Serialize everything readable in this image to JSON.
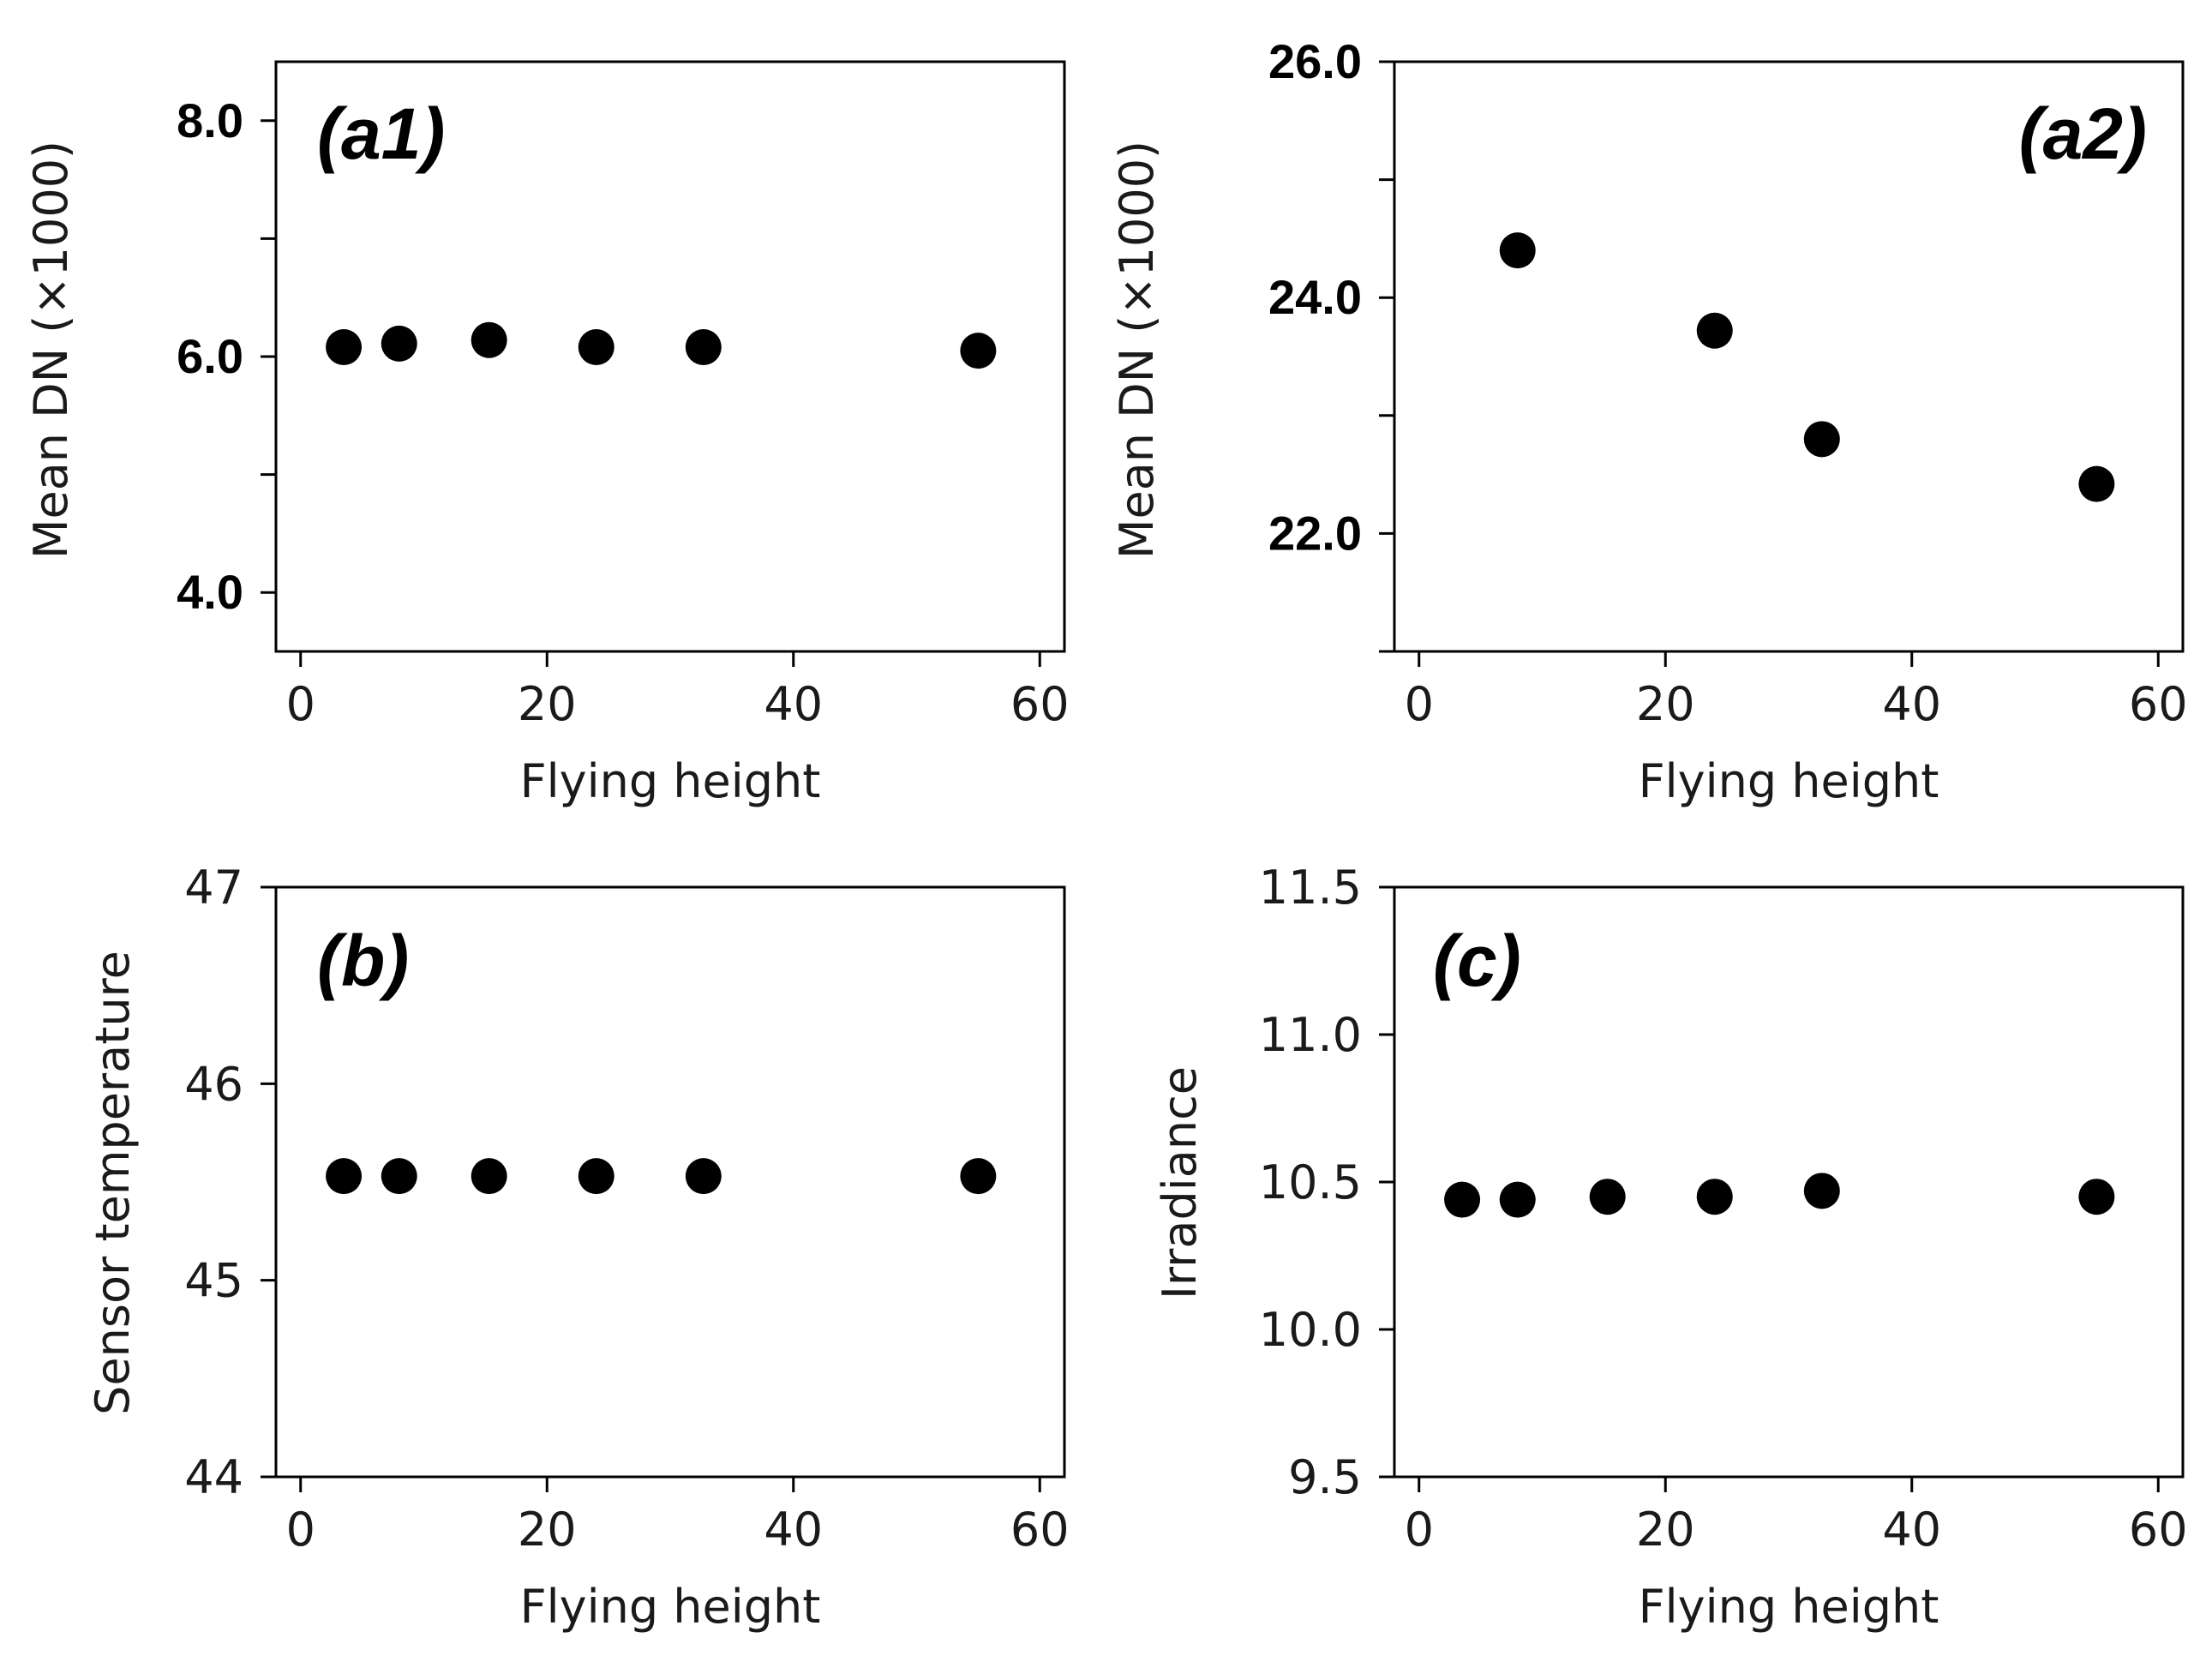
{
  "chart_data": [
    {
      "id": "a1",
      "type": "scatter",
      "panel_label": "(a1)",
      "xlabel": "Flying height",
      "ylabel": "Mean DN (×1000)",
      "xlim": [
        -2,
        62
      ],
      "ylim": [
        3.5,
        8.5
      ],
      "xticks": [
        "0",
        "20",
        "40",
        "60"
      ],
      "yticks": [
        "4.0",
        "6.0",
        "8.0"
      ],
      "minor_yticks": [
        5,
        7
      ],
      "x": [
        3.5,
        8,
        15.3,
        24,
        32.7,
        55
      ],
      "y": [
        6.08,
        6.11,
        6.14,
        6.08,
        6.08,
        6.05
      ]
    },
    {
      "id": "a2",
      "type": "scatter",
      "panel_label": "(a2)",
      "xlabel": "Flying height",
      "ylabel": "Mean DN (×1000)",
      "xlim": [
        -2,
        62
      ],
      "ylim": [
        21.0,
        26.0
      ],
      "xticks": [
        "0",
        "20",
        "40",
        "60"
      ],
      "yticks": [
        "22.0",
        "24.0",
        "26.0"
      ],
      "minor_yticks": [
        21,
        23,
        25
      ],
      "x": [
        8,
        24,
        32.7,
        55
      ],
      "y": [
        24.4,
        23.72,
        22.8,
        22.42
      ]
    },
    {
      "id": "b",
      "type": "scatter",
      "panel_label": "(b)",
      "xlabel": "Flying height",
      "ylabel": "Sensor temperature",
      "xlim": [
        -2,
        62
      ],
      "ylim": [
        44,
        47
      ],
      "xticks": [
        "0",
        "20",
        "40",
        "60"
      ],
      "yticks": [
        "44",
        "45",
        "46",
        "47"
      ],
      "x": [
        3.5,
        8,
        15.3,
        24,
        32.7,
        55
      ],
      "y": [
        45.53,
        45.53,
        45.53,
        45.53,
        45.53,
        45.53
      ]
    },
    {
      "id": "c",
      "type": "scatter",
      "panel_label": "(c)",
      "xlabel": "Flying height",
      "ylabel": "Irradiance",
      "xlim": [
        -2,
        62
      ],
      "ylim": [
        9.5,
        11.5
      ],
      "xticks": [
        "0",
        "20",
        "40",
        "60"
      ],
      "yticks": [
        "9.5",
        "10.0",
        "10.5",
        "11.0",
        "11.5"
      ],
      "x": [
        3.5,
        8,
        15.3,
        24,
        32.7,
        55
      ],
      "y": [
        10.44,
        10.44,
        10.45,
        10.45,
        10.47,
        10.45
      ]
    }
  ]
}
